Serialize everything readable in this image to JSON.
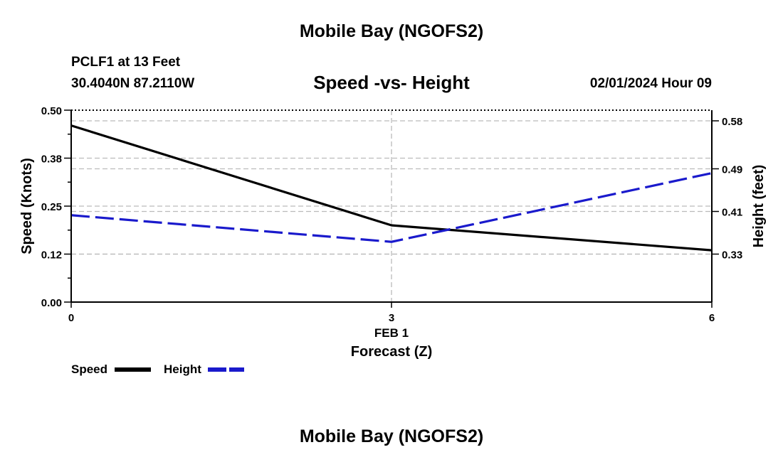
{
  "page_title": "Mobile Bay (NGOFS2)",
  "station": {
    "name": "PCLF1 at 13 Feet",
    "coords": "30.4040N  87.2110W",
    "datetime": "02/01/2024 Hour 09"
  },
  "footer_title": "Mobile Bay (NGOFS2)",
  "colors": {
    "speed": "#000000",
    "height": "#1a1acc",
    "grid": "#bbbbbb"
  },
  "chart_data": {
    "type": "line",
    "title": "Speed -vs- Height",
    "xlabel_date": "FEB 1",
    "xlabel": "Forecast (Z)",
    "ylabel": "Speed (Knots)",
    "y2label": "Height (feet)",
    "x": [
      0,
      3,
      6
    ],
    "x_tick_labels": [
      "0",
      "3",
      "6"
    ],
    "ylim": [
      0,
      0.5
    ],
    "y_ticks": [
      0.0,
      0.125,
      0.25,
      0.375,
      0.5
    ],
    "y_tick_labels": [
      "0.00",
      "0.12",
      "0.25",
      "0.38",
      "0.50"
    ],
    "y2lim": [
      0.24,
      0.6
    ],
    "y2_ticks": [
      0.33,
      0.41,
      0.49,
      0.58
    ],
    "y2_tick_labels": [
      "0.33",
      "0.41",
      "0.49",
      "0.58"
    ],
    "grid": true,
    "series": [
      {
        "name": "Speed",
        "axis": "left",
        "style": "solid",
        "values": [
          0.46,
          0.2,
          0.135
        ]
      },
      {
        "name": "Height",
        "axis": "right",
        "style": "dashed",
        "values": [
          0.403,
          0.353,
          0.482
        ]
      }
    ]
  },
  "legend": [
    {
      "label": "Speed"
    },
    {
      "label": "Height"
    }
  ]
}
